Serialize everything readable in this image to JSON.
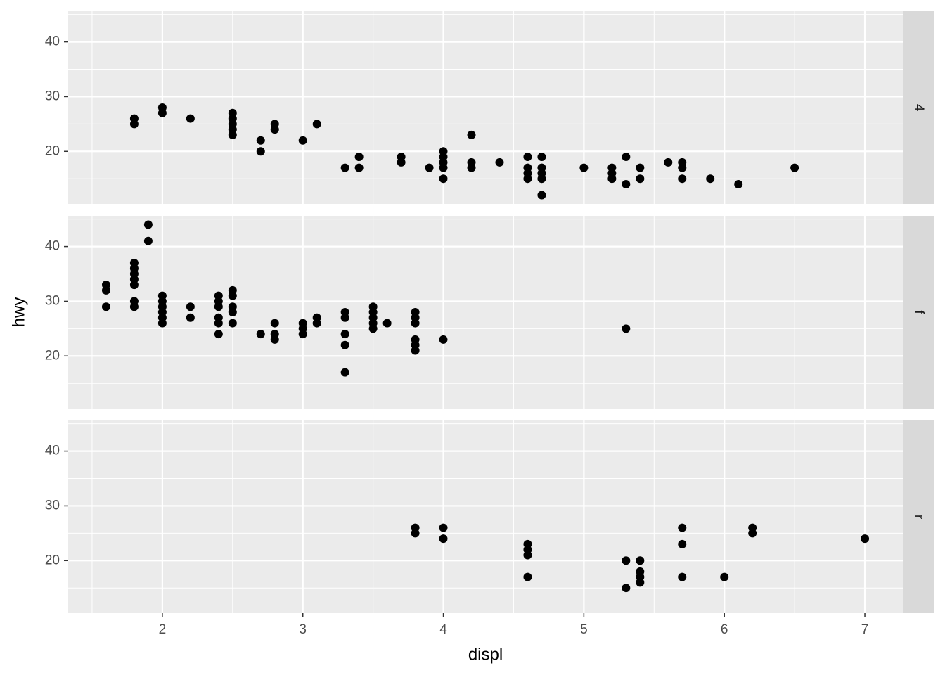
{
  "chart_data": [
    {
      "type": "scatter",
      "title": "4",
      "color": "#000000",
      "grid": true,
      "xlim": [
        1.33,
        7.27
      ],
      "ylim": [
        10.4,
        45.6
      ],
      "xticks": [
        2,
        3,
        4,
        5,
        6,
        7
      ],
      "yticks": [
        20,
        30,
        40
      ],
      "x": [
        1.8,
        1.8,
        2,
        2,
        2.2,
        2.5,
        2.5,
        2.5,
        2.5,
        2.5,
        2.7,
        2.7,
        2.8,
        2.8,
        3,
        3.1,
        3.3,
        3.4,
        3.4,
        3.7,
        3.7,
        3.9,
        4,
        4,
        4,
        4,
        4,
        4.2,
        4.2,
        4.2,
        4.4,
        4.6,
        4.6,
        4.6,
        4.6,
        4.7,
        4.7,
        4.7,
        4.7,
        4.7,
        5,
        5.2,
        5.2,
        5.2,
        5.3,
        5.3,
        5.4,
        5.4,
        5.6,
        5.7,
        5.7,
        5.7,
        5.9,
        6.1,
        6.5
      ],
      "values": [
        26,
        25,
        28,
        27,
        26,
        27,
        26,
        25,
        24,
        23,
        22,
        20,
        25,
        24,
        22,
        25,
        17,
        19,
        17,
        19,
        18,
        17,
        20,
        19,
        18,
        17,
        15,
        23,
        18,
        17,
        18,
        19,
        17,
        16,
        15,
        19,
        17,
        16,
        15,
        12,
        17,
        17,
        16,
        15,
        19,
        14,
        17,
        15,
        18,
        18,
        17,
        15,
        15,
        14,
        17
      ]
    },
    {
      "type": "scatter",
      "title": "f",
      "ylabel": "hwy",
      "color": "#000000",
      "grid": true,
      "xlim": [
        1.33,
        7.27
      ],
      "ylim": [
        10.4,
        45.6
      ],
      "xticks": [
        2,
        3,
        4,
        5,
        6,
        7
      ],
      "yticks": [
        20,
        30,
        40
      ],
      "x": [
        1.6,
        1.6,
        1.6,
        1.8,
        1.8,
        1.8,
        1.8,
        1.8,
        1.8,
        1.8,
        1.9,
        1.9,
        2,
        2,
        2,
        2,
        2,
        2,
        2.2,
        2.2,
        2.4,
        2.4,
        2.4,
        2.4,
        2.4,
        2.4,
        2.5,
        2.5,
        2.5,
        2.5,
        2.5,
        2.7,
        2.8,
        2.8,
        2.8,
        3,
        3,
        3,
        3.1,
        3.1,
        3.3,
        3.3,
        3.3,
        3.3,
        3.3,
        3.5,
        3.5,
        3.5,
        3.5,
        3.5,
        3.6,
        3.8,
        3.8,
        3.8,
        3.8,
        3.8,
        3.8,
        4,
        5.3
      ],
      "values": [
        33,
        32,
        29,
        37,
        36,
        35,
        34,
        33,
        30,
        29,
        44,
        41,
        31,
        30,
        29,
        28,
        27,
        26,
        29,
        27,
        31,
        30,
        29,
        27,
        26,
        24,
        32,
        31,
        29,
        28,
        26,
        24,
        26,
        24,
        23,
        26,
        25,
        24,
        27,
        26,
        28,
        27,
        24,
        22,
        17,
        29,
        28,
        27,
        26,
        25,
        26,
        28,
        27,
        26,
        23,
        22,
        21,
        23,
        25
      ]
    },
    {
      "type": "scatter",
      "title": "r",
      "xlabel": "displ",
      "color": "#000000",
      "grid": true,
      "xlim": [
        1.33,
        7.27
      ],
      "ylim": [
        10.4,
        45.6
      ],
      "xticks": [
        2,
        3,
        4,
        5,
        6,
        7
      ],
      "yticks": [
        20,
        30,
        40
      ],
      "x": [
        3.8,
        3.8,
        4,
        4,
        4.6,
        4.6,
        4.6,
        4.6,
        5.3,
        5.3,
        5.4,
        5.4,
        5.4,
        5.4,
        5.7,
        5.7,
        5.7,
        6,
        6.2,
        6.2,
        7
      ],
      "values": [
        26,
        25,
        26,
        24,
        23,
        22,
        21,
        17,
        20,
        15,
        20,
        18,
        17,
        16,
        26,
        23,
        17,
        17,
        26,
        25,
        24
      ]
    }
  ]
}
